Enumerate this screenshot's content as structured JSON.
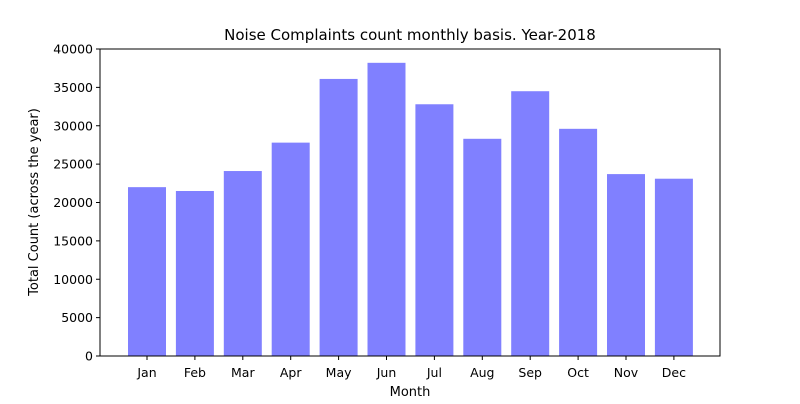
{
  "chart_data": {
    "type": "bar",
    "title": "Noise Complaints count monthly basis. Year-2018",
    "xlabel": "Month",
    "ylabel": "Total Count (across the year)",
    "categories": [
      "Jan",
      "Feb",
      "Mar",
      "Apr",
      "May",
      "Jun",
      "Jul",
      "Aug",
      "Sep",
      "Oct",
      "Nov",
      "Dec"
    ],
    "values": [
      22000,
      21500,
      24100,
      27800,
      36100,
      38200,
      32800,
      28300,
      34500,
      29600,
      23700,
      23100
    ],
    "ylim": [
      0,
      40000
    ],
    "yticks": [
      0,
      5000,
      10000,
      15000,
      20000,
      25000,
      30000,
      35000,
      40000
    ],
    "bar_color": "#8080ff",
    "grid": false,
    "legend": "none"
  }
}
